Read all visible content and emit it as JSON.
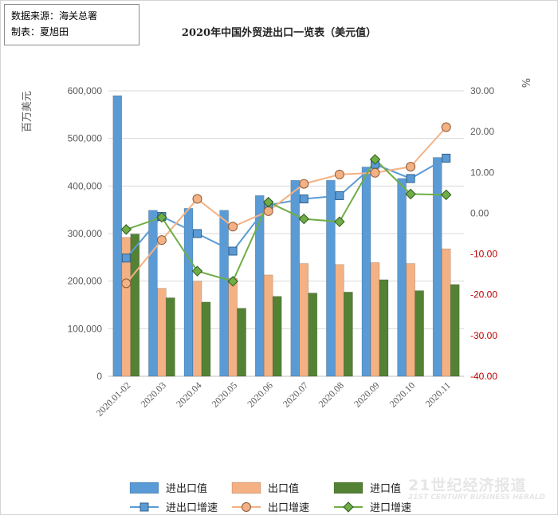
{
  "source_note": {
    "line1": "数据来源：海关总署",
    "line2": "制表：夏旭田"
  },
  "chart_data": {
    "type": "bar",
    "title": "2020年中国外贸进出口一览表（美元值）",
    "ylabel": "百万美元",
    "ylabel_right": "%",
    "ylim": [
      0,
      600000
    ],
    "ylim_right": [
      -40,
      30
    ],
    "left_ticks": [
      "0",
      "100,000",
      "200,000",
      "300,000",
      "400,000",
      "500,000",
      "600,000"
    ],
    "right_ticks": [
      "-40.00",
      "-30.00",
      "-20.00",
      "-10.00",
      "0.00",
      "10.00",
      "20.00",
      "30.00"
    ],
    "categories": [
      "2020.01-02",
      "2020.03",
      "2020.04",
      "2020.05",
      "2020.06",
      "2020.07",
      "2020.08",
      "2020.09",
      "2020.10",
      "2020.11"
    ],
    "series": [
      {
        "name": "进出口值",
        "kind": "bar",
        "axis": "left",
        "color": "#5b9bd5",
        "values": [
          590000,
          349000,
          353000,
          349000,
          380000,
          412000,
          412000,
          440000,
          416000,
          460000
        ]
      },
      {
        "name": "出口值",
        "kind": "bar",
        "axis": "left",
        "color": "#f4b183",
        "values": [
          292000,
          185000,
          200000,
          206000,
          213000,
          237000,
          235000,
          239000,
          237000,
          268000
        ]
      },
      {
        "name": "进口值",
        "kind": "bar",
        "axis": "left",
        "color": "#548235",
        "values": [
          299000,
          165000,
          156000,
          143000,
          168000,
          175000,
          177000,
          203000,
          180000,
          193000
        ]
      },
      {
        "name": "进出口增速",
        "kind": "line",
        "axis": "right",
        "color": "#5b9bd5",
        "marker": "square",
        "values": [
          -11.0,
          -0.8,
          -5.0,
          -9.3,
          2.0,
          3.5,
          4.3,
          12.0,
          8.5,
          13.5
        ]
      },
      {
        "name": "出口增速",
        "kind": "line",
        "axis": "right",
        "color": "#f4b183",
        "marker": "circle",
        "values": [
          -17.2,
          -6.6,
          3.5,
          -3.3,
          0.5,
          7.2,
          9.5,
          9.9,
          11.4,
          21.1
        ]
      },
      {
        "name": "进口增速",
        "kind": "line",
        "axis": "right",
        "color": "#70ad47",
        "marker": "diamond",
        "values": [
          -4.0,
          -1.0,
          -14.2,
          -16.7,
          2.7,
          -1.4,
          -2.1,
          13.2,
          4.7,
          4.5
        ]
      }
    ],
    "grid": true,
    "legend": "bottom"
  },
  "watermark": {
    "cn": "21世纪经济报道",
    "en": "21ST CENTURY BUSINESS HERALD"
  }
}
